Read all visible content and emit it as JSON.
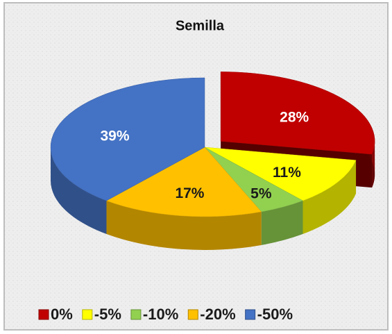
{
  "chart_data": {
    "type": "pie3d",
    "title": "Semilla",
    "categories": [
      "0%",
      "-5%",
      "-10%",
      "-20%",
      "-50%"
    ],
    "values": [
      28,
      11,
      5,
      17,
      39
    ],
    "value_labels": [
      "28%",
      "11%",
      "5%",
      "17%",
      "39%"
    ],
    "colors": [
      "#c00000",
      "#ffff00",
      "#92d050",
      "#ffc000",
      "#4472c4"
    ],
    "legend": "bottom"
  }
}
